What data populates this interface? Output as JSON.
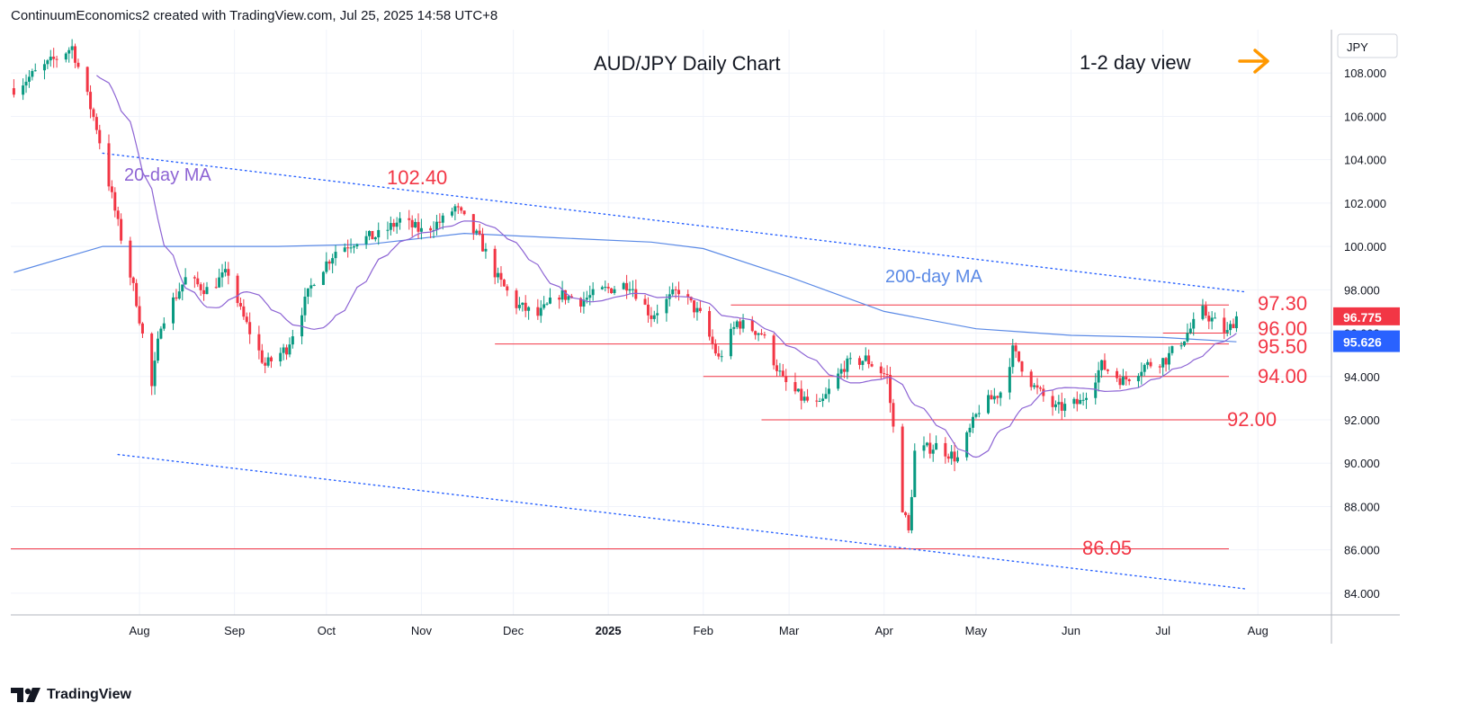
{
  "header": {
    "attribution": "ContinuumEconomics2 created with TradingView.com, Jul 25, 2025 14:58 UTC+8"
  },
  "footer": {
    "brand": "TradingView"
  },
  "chart_data": {
    "type": "candlestick",
    "title": "AUD/JPY Daily Chart",
    "view_label": "1-2 day view",
    "currency": "JPY",
    "ylim": [
      83.0,
      110.0
    ],
    "y_ticks": [
      "84.000",
      "86.000",
      "88.000",
      "90.000",
      "92.000",
      "94.000",
      "96.000",
      "98.000",
      "100.000",
      "102.000",
      "104.000",
      "106.000",
      "108.000"
    ],
    "x_ticks": [
      "Aug",
      "Sep",
      "Oct",
      "Nov",
      "Dec",
      "2025",
      "Feb",
      "Mar",
      "Apr",
      "May",
      "Jun",
      "Jul",
      "Aug"
    ],
    "last_price": "96.775",
    "last_price_ma": "95.626",
    "annotations": {
      "ma20_label": "20-day MA",
      "ma200_label": "200-day MA",
      "high_label": "102.40",
      "low_label": "86.05"
    },
    "levels": [
      {
        "label": "97.30",
        "value": 97.3,
        "from": "2025-02-10"
      },
      {
        "label": "96.00",
        "value": 96.0,
        "from": "2025-07-01"
      },
      {
        "label": "95.50",
        "value": 95.5,
        "from": "2024-11-25"
      },
      {
        "label": "94.00",
        "value": 94.0,
        "from": "2025-02-01"
      },
      {
        "label": "92.00",
        "value": 92.0,
        "from": "2025-02-20"
      },
      {
        "label": "86.05",
        "value": 86.05,
        "from": "2024-06-20"
      }
    ],
    "trendlines": [
      {
        "from": [
          "2024-07-20",
          104.3
        ],
        "to": [
          "2025-07-28",
          97.9
        ]
      },
      {
        "from": [
          "2024-07-25",
          90.4
        ],
        "to": [
          "2025-07-28",
          84.2
        ]
      }
    ],
    "close_anchors": [
      [
        "2024-06-21",
        107.3
      ],
      [
        "2024-07-01",
        108.3
      ],
      [
        "2024-07-10",
        109.2
      ],
      [
        "2024-07-18",
        105.5
      ],
      [
        "2024-07-25",
        101.0
      ],
      [
        "2024-07-31",
        97.5
      ],
      [
        "2024-08-05",
        93.5
      ],
      [
        "2024-08-08",
        96.5
      ],
      [
        "2024-08-16",
        98.5
      ],
      [
        "2024-08-23",
        98.0
      ],
      [
        "2024-08-30",
        98.8
      ],
      [
        "2024-09-03",
        97.0
      ],
      [
        "2024-09-11",
        94.5
      ],
      [
        "2024-09-18",
        95.3
      ],
      [
        "2024-09-27",
        98.5
      ],
      [
        "2024-10-04",
        99.8
      ],
      [
        "2024-10-11",
        100.3
      ],
      [
        "2024-10-18",
        100.5
      ],
      [
        "2024-10-25",
        101.2
      ],
      [
        "2024-11-01",
        100.7
      ],
      [
        "2024-11-08",
        101.2
      ],
      [
        "2024-11-12",
        101.8
      ],
      [
        "2024-11-20",
        100.3
      ],
      [
        "2024-11-26",
        98.5
      ],
      [
        "2024-12-02",
        97.3
      ],
      [
        "2024-12-09",
        96.8
      ],
      [
        "2024-12-16",
        97.8
      ],
      [
        "2024-12-23",
        97.5
      ],
      [
        "2024-12-31",
        98.0
      ],
      [
        "2025-01-08",
        98.3
      ],
      [
        "2025-01-15",
        96.8
      ],
      [
        "2025-01-24",
        98.0
      ],
      [
        "2025-01-31",
        96.8
      ],
      [
        "2025-02-06",
        94.8
      ],
      [
        "2025-02-12",
        96.5
      ],
      [
        "2025-02-20",
        96.0
      ],
      [
        "2025-02-27",
        93.8
      ],
      [
        "2025-03-05",
        93.0
      ],
      [
        "2025-03-11",
        92.6
      ],
      [
        "2025-03-19",
        94.5
      ],
      [
        "2025-03-26",
        94.8
      ],
      [
        "2025-04-02",
        94.0
      ],
      [
        "2025-04-07",
        88.0
      ],
      [
        "2025-04-09",
        86.8
      ],
      [
        "2025-04-11",
        90.5
      ],
      [
        "2025-04-18",
        90.8
      ],
      [
        "2025-04-25",
        90.2
      ],
      [
        "2025-05-02",
        92.5
      ],
      [
        "2025-05-09",
        93.3
      ],
      [
        "2025-05-13",
        95.2
      ],
      [
        "2025-05-20",
        93.5
      ],
      [
        "2025-05-27",
        92.5
      ],
      [
        "2025-06-04",
        92.8
      ],
      [
        "2025-06-11",
        94.5
      ],
      [
        "2025-06-18",
        93.8
      ],
      [
        "2025-06-25",
        94.5
      ],
      [
        "2025-07-02",
        94.8
      ],
      [
        "2025-07-08",
        95.8
      ],
      [
        "2025-07-14",
        97.0
      ],
      [
        "2025-07-18",
        96.5
      ],
      [
        "2025-07-22",
        96.0
      ],
      [
        "2025-07-25",
        96.78
      ]
    ],
    "ma200_anchors": [
      [
        "2024-06-21",
        98.8
      ],
      [
        "2024-07-20",
        100.0
      ],
      [
        "2024-09-15",
        100.0
      ],
      [
        "2024-10-15",
        100.1
      ],
      [
        "2024-11-15",
        100.6
      ],
      [
        "2024-12-15",
        100.4
      ],
      [
        "2025-01-15",
        100.2
      ],
      [
        "2025-02-01",
        99.9
      ],
      [
        "2025-03-01",
        98.6
      ],
      [
        "2025-04-01",
        97.0
      ],
      [
        "2025-05-01",
        96.2
      ],
      [
        "2025-06-01",
        95.9
      ],
      [
        "2025-07-01",
        95.8
      ],
      [
        "2025-07-25",
        95.6
      ]
    ],
    "colors": {
      "up": "#089981",
      "down": "#f23645",
      "ma20": "#8d64d4",
      "ma200": "#5b8ae6",
      "level": "#f23645",
      "trend": "#2962ff",
      "arrow": "#ff9800"
    }
  }
}
